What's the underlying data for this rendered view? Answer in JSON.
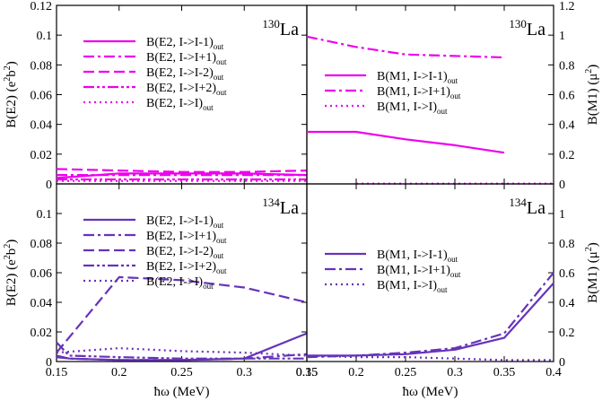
{
  "colors": {
    "magenta": "#ee00ee",
    "purple": "#6633bb",
    "frame": "#000000"
  },
  "chart_data": [
    {
      "id": "p130_e2",
      "type": "line",
      "nucleus": "La",
      "mass": "130",
      "ylabel": "B(E2) (e",
      "ylabel_exp1": "2",
      "ylabel_mid": "b",
      "ylabel_exp2": "2",
      "ylabel_close": ")",
      "xlim": [
        0.15,
        0.35
      ],
      "ylim": [
        0,
        0.12
      ],
      "yticks": [
        "0",
        "0.02",
        "0.04",
        "0.06",
        "0.08",
        "0.1",
        "0.12"
      ],
      "legend_location": "top-left",
      "series": [
        {
          "label": "B(E2, I->I-1)",
          "sub": "out",
          "style": "solid",
          "color": "magenta",
          "x": [
            0.15,
            0.2,
            0.25,
            0.3,
            0.35
          ],
          "y": [
            0.004,
            0.007,
            0.007,
            0.007,
            0.006
          ]
        },
        {
          "label": "B(E2, I->I+1)",
          "sub": "out",
          "style": "dashdot",
          "color": "magenta",
          "x": [
            0.15,
            0.2,
            0.25,
            0.3,
            0.35
          ],
          "y": [
            0.006,
            0.006,
            0.006,
            0.006,
            0.006
          ]
        },
        {
          "label": "B(E2, I->I-2)",
          "sub": "out",
          "style": "dash",
          "color": "magenta",
          "x": [
            0.15,
            0.2,
            0.25,
            0.3,
            0.35
          ],
          "y": [
            0.01,
            0.009,
            0.008,
            0.008,
            0.009
          ]
        },
        {
          "label": "B(E2, I->I+2)",
          "sub": "out",
          "style": "dashdotdot",
          "color": "magenta",
          "x": [
            0.15,
            0.2,
            0.25,
            0.3,
            0.35
          ],
          "y": [
            0.003,
            0.003,
            0.003,
            0.003,
            0.003
          ]
        },
        {
          "label": "B(E2, I->I)",
          "sub": "out",
          "style": "dot",
          "color": "magenta",
          "x": [
            0.15,
            0.2,
            0.25,
            0.3,
            0.35
          ],
          "y": [
            0.002,
            0.002,
            0.002,
            0.002,
            0.002
          ]
        }
      ]
    },
    {
      "id": "p130_m1",
      "type": "line",
      "nucleus": "La",
      "mass": "130",
      "ylabel": "B(M1) (",
      "ylabel_mu": "μ",
      "ylabel_exp": "2",
      "ylabel_close": ")",
      "xlim": [
        0.15,
        0.4
      ],
      "ylim": [
        0,
        1.2
      ],
      "yticks": [
        "0",
        "0.2",
        "0.4",
        "0.6",
        "0.8",
        "1",
        "1.2"
      ],
      "legend_location": "center",
      "series": [
        {
          "label": "B(M1, I->I-1)",
          "sub": "out",
          "style": "solid",
          "color": "magenta",
          "x": [
            0.15,
            0.2,
            0.25,
            0.3,
            0.35
          ],
          "y": [
            0.35,
            0.35,
            0.3,
            0.26,
            0.21
          ]
        },
        {
          "label": "B(M1, I->I+1)",
          "sub": "out",
          "style": "dashdot",
          "color": "magenta",
          "x": [
            0.15,
            0.2,
            0.25,
            0.3,
            0.35
          ],
          "y": [
            0.99,
            0.92,
            0.87,
            0.86,
            0.85
          ]
        },
        {
          "label": "B(M1, I->I)",
          "sub": "out",
          "style": "dot",
          "color": "magenta",
          "x": [
            0.2,
            0.25,
            0.3,
            0.35,
            0.4
          ],
          "y": [
            0.002,
            0.002,
            0.002,
            0.002,
            0.002
          ]
        }
      ]
    },
    {
      "id": "p134_e2",
      "type": "line",
      "nucleus": "La",
      "mass": "134",
      "ylabel": "B(E2) (e",
      "ylabel_exp1": "2",
      "ylabel_mid": "b",
      "ylabel_exp2": "2",
      "ylabel_close": ")",
      "xlabel": "ħω (MeV)",
      "xlim": [
        0.15,
        0.35
      ],
      "ylim": [
        0,
        0.12
      ],
      "yticks": [
        "0",
        "0.02",
        "0.04",
        "0.06",
        "0.08",
        "0.1"
      ],
      "xticks": [
        "0.15",
        "0.2",
        "0.25",
        "0.3",
        "0.35"
      ],
      "legend_location": "top-left",
      "series": [
        {
          "label": "B(E2, I->I-1)",
          "sub": "out",
          "style": "solid",
          "color": "purple",
          "x": [
            0.15,
            0.16,
            0.2,
            0.25,
            0.3,
            0.35
          ],
          "y": [
            0.004,
            0.002,
            0.001,
            0.001,
            0.002,
            0.019
          ]
        },
        {
          "label": "B(E2, I->I+1)",
          "sub": "out",
          "style": "dashdot",
          "color": "purple",
          "x": [
            0.15,
            0.16,
            0.2,
            0.25,
            0.3,
            0.35
          ],
          "y": [
            0.003,
            0.002,
            0.001,
            0.001,
            0.002,
            0.005
          ]
        },
        {
          "label": "B(E2, I->I-2)",
          "sub": "out",
          "style": "dash",
          "color": "purple",
          "x": [
            0.15,
            0.2,
            0.25,
            0.3,
            0.35
          ],
          "y": [
            0.006,
            0.057,
            0.055,
            0.05,
            0.04
          ]
        },
        {
          "label": "B(E2, I->I+2)",
          "sub": "out",
          "style": "dashdotdot",
          "color": "purple",
          "x": [
            0.15,
            0.16,
            0.2,
            0.25,
            0.3,
            0.35
          ],
          "y": [
            0.013,
            0.004,
            0.003,
            0.002,
            0.002,
            0.002
          ]
        },
        {
          "label": "B(E2, I->I)",
          "sub": "out",
          "style": "dot",
          "color": "purple",
          "x": [
            0.15,
            0.2,
            0.25,
            0.3,
            0.35
          ],
          "y": [
            0.006,
            0.009,
            0.007,
            0.006,
            0.004
          ]
        }
      ]
    },
    {
      "id": "p134_m1",
      "type": "line",
      "nucleus": "La",
      "mass": "134",
      "ylabel": "B(M1) (",
      "ylabel_mu": "μ",
      "ylabel_exp": "2",
      "ylabel_close": ")",
      "xlabel": "ħω (MeV)",
      "xlim": [
        0.15,
        0.4
      ],
      "ylim": [
        0,
        1.2
      ],
      "yticks": [
        "0",
        "0.2",
        "0.4",
        "0.6",
        "0.8",
        "1"
      ],
      "xticks": [
        "0.15",
        "0.2",
        "0.25",
        "0.3",
        "0.35",
        "0.4"
      ],
      "legend_location": "center",
      "series": [
        {
          "label": "B(M1, I->I-1)",
          "sub": "out",
          "style": "solid",
          "color": "purple",
          "x": [
            0.15,
            0.2,
            0.25,
            0.3,
            0.35,
            0.4
          ],
          "y": [
            0.04,
            0.04,
            0.05,
            0.08,
            0.16,
            0.53
          ]
        },
        {
          "label": "B(M1, I->I+1)",
          "sub": "out",
          "style": "dashdot",
          "color": "purple",
          "x": [
            0.15,
            0.2,
            0.25,
            0.3,
            0.35,
            0.4
          ],
          "y": [
            0.03,
            0.04,
            0.06,
            0.09,
            0.19,
            0.6
          ]
        },
        {
          "label": "B(M1, I->I)",
          "sub": "out",
          "style": "dot",
          "color": "purple",
          "x": [
            0.15,
            0.2,
            0.25,
            0.3,
            0.35,
            0.4
          ],
          "y": [
            0.04,
            0.03,
            0.03,
            0.02,
            0.01,
            0.01
          ]
        }
      ]
    }
  ]
}
